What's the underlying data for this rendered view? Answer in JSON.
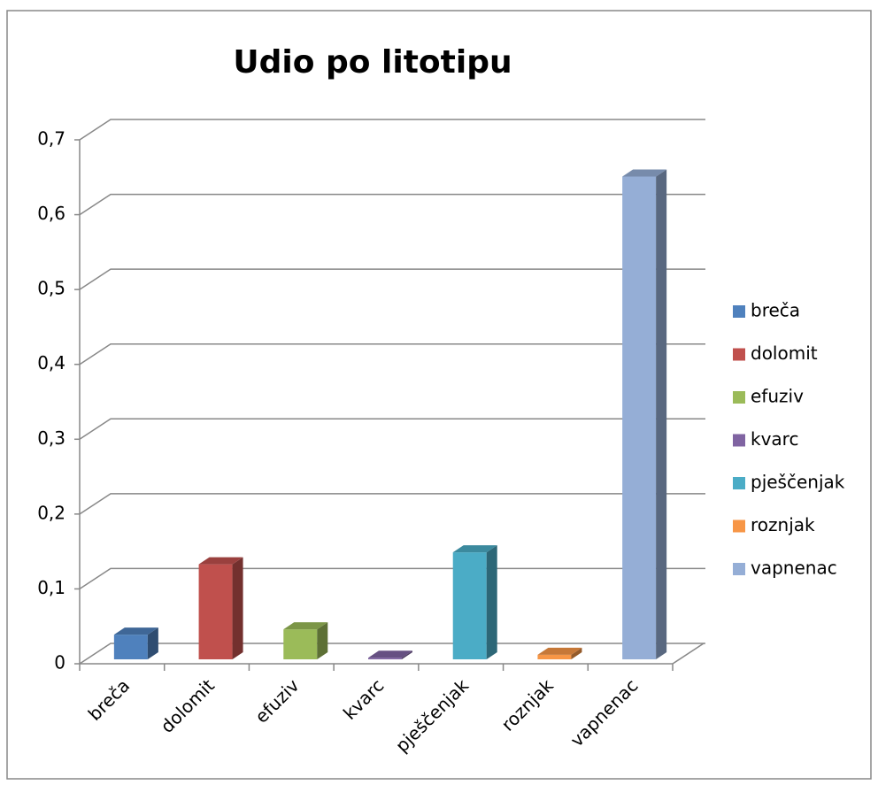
{
  "chart_data": {
    "type": "bar3d",
    "title": "Udio po litotipu",
    "categories": [
      "breča",
      "dolomit",
      "efuziv",
      "kvarc",
      "pješčenjak",
      "roznjak",
      "vapnenac"
    ],
    "values": [
      0.033,
      0.127,
      0.04,
      0.002,
      0.143,
      0.006,
      0.645
    ],
    "colors": [
      "#4f81bd",
      "#c0504d",
      "#9bbb59",
      "#8064a2",
      "#4bacc6",
      "#f79646",
      "#95aed6"
    ],
    "ylim": [
      0,
      0.7
    ],
    "yticks": [
      0,
      {
        "value": 0.1,
        "label": "0,1"
      },
      {
        "value": 0.2,
        "label": "0,2"
      },
      {
        "value": 0.3,
        "label": "0,3"
      },
      {
        "value": 0.4,
        "label": "0,4"
      },
      {
        "value": 0.5,
        "label": "0,5"
      },
      {
        "value": 0.6,
        "label": "0,6"
      },
      {
        "value": 0.7,
        "label": "0,7"
      }
    ],
    "grid": true,
    "legend": "right"
  }
}
